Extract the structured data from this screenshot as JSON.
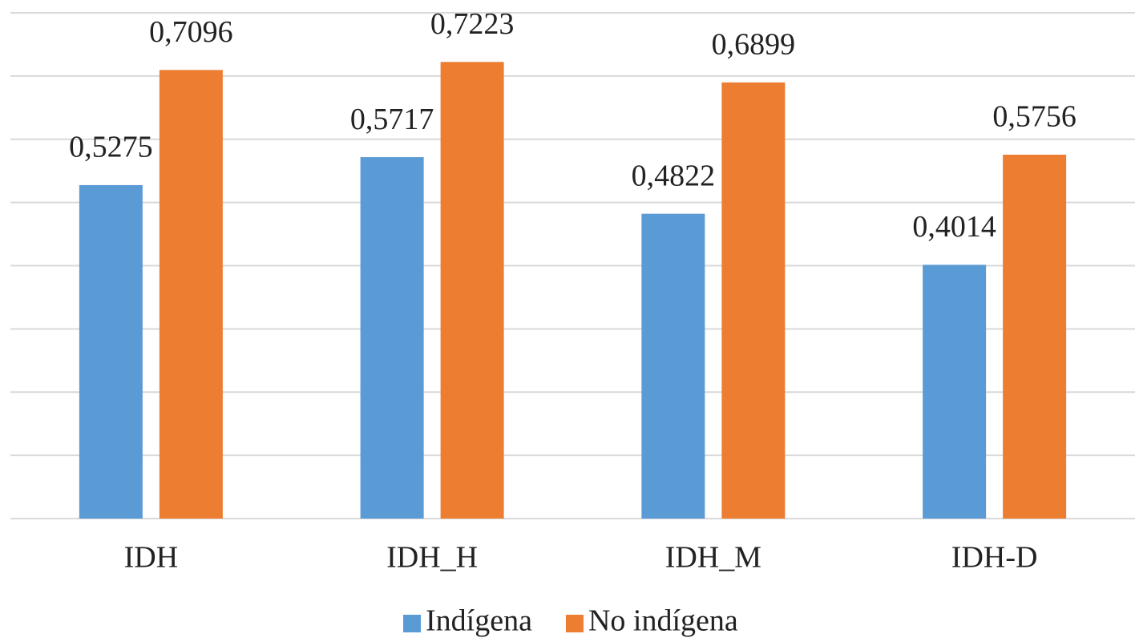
{
  "chart_data": {
    "type": "bar",
    "categories": [
      "IDH",
      "IDH_H",
      "IDH_M",
      "IDH-D"
    ],
    "series": [
      {
        "name": "Indígena",
        "color": "#5b9bd5",
        "values": [
          0.5275,
          0.5717,
          0.4822,
          0.4014
        ],
        "value_labels": [
          "0,5275",
          "0,5717",
          "0,4822",
          "0,4014"
        ]
      },
      {
        "name": "No indígena",
        "color": "#ed7d31",
        "values": [
          0.7096,
          0.7223,
          0.6899,
          0.5756
        ],
        "value_labels": [
          "0,7096",
          "0,7223",
          "0,6899",
          "0,5756"
        ]
      }
    ],
    "ylim": [
      0,
      0.8
    ],
    "yticks": [
      0,
      0.1,
      0.2,
      0.3,
      0.4,
      0.5,
      0.6,
      0.7,
      0.8
    ],
    "grid": true,
    "legend": "bottom"
  }
}
